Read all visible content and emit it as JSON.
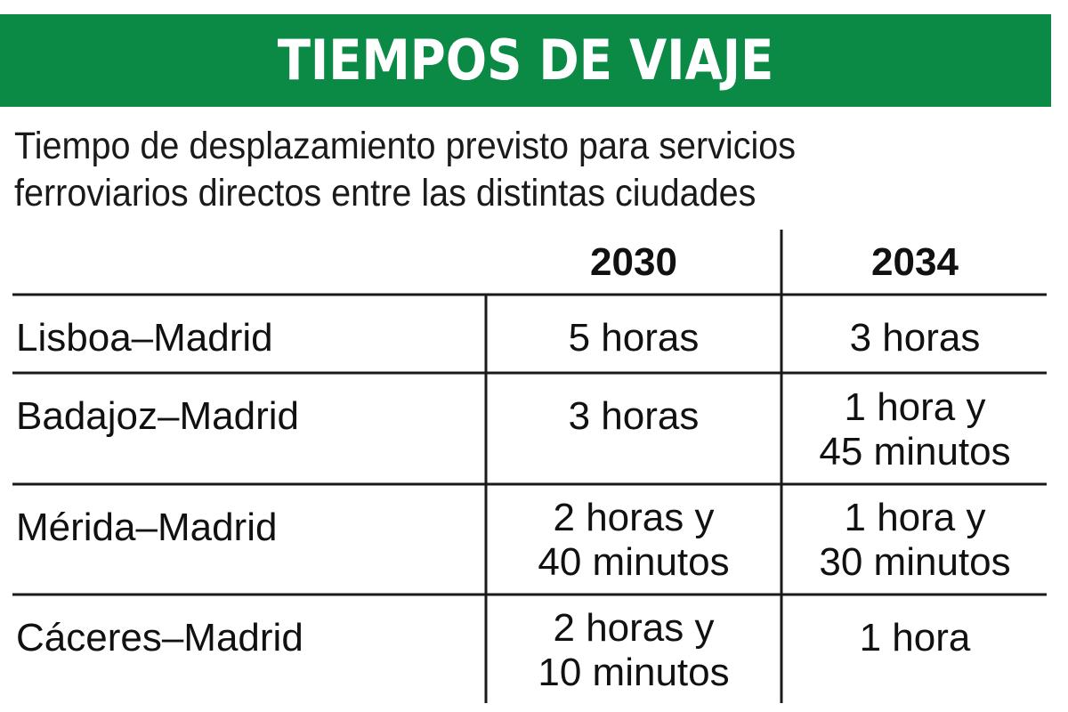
{
  "title": "TIEMPOS DE VIAJE",
  "subtitle": "Tiempo de desplazamiento previsto para servicios ferroviarios directos entre las distintas ciudades",
  "colors": {
    "banner": "#0a8a45",
    "banner_text": "#ffffff",
    "rule": "#1a1a1a"
  },
  "chart_data": {
    "type": "table",
    "title": "TIEMPOS DE VIAJE",
    "subtitle": "Tiempo de desplazamiento previsto para servicios ferroviarios directos entre las distintas ciudades",
    "columns": [
      "",
      "2030",
      "2034"
    ],
    "rows": [
      {
        "route": "Lisboa–Madrid",
        "y2030": "5 horas",
        "y2034": "3 horas"
      },
      {
        "route": "Badajoz–Madrid",
        "y2030": "3 horas",
        "y2034": "1 hora y\n45 minutos"
      },
      {
        "route": "Mérida–Madrid",
        "y2030": "2 horas y\n40 minutos",
        "y2034": "1 hora y\n30 minutos"
      },
      {
        "route": "Cáceres–Madrid",
        "y2030": "2 horas y\n10 minutos",
        "y2034": "1 hora"
      }
    ]
  }
}
